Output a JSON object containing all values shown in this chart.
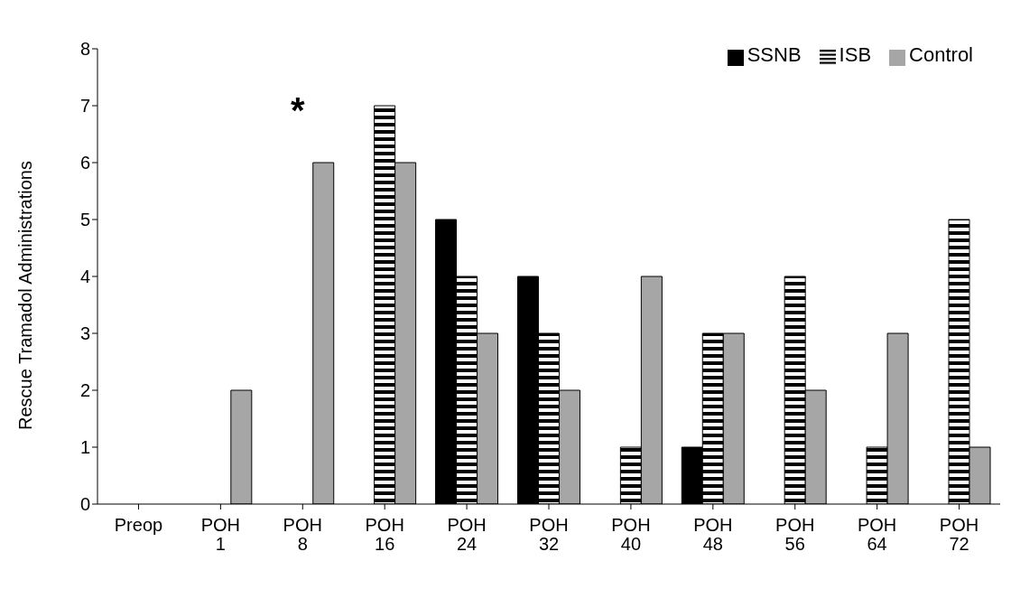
{
  "chart_data": {
    "type": "bar",
    "ylabel": "Rescue Tramadol Administrations",
    "categories": [
      "Preop",
      "POH 1",
      "POH 8",
      "POH 16",
      "POH 24",
      "POH 32",
      "POH 40",
      "POH 48",
      "POH 56",
      "POH 64",
      "POH 72"
    ],
    "series": [
      {
        "name": "SSNB",
        "color": "#000000",
        "values": [
          0,
          0,
          0,
          0,
          5,
          4,
          0,
          1,
          0,
          0,
          0
        ]
      },
      {
        "name": "ISB",
        "color": "#000000",
        "values": [
          0,
          0,
          0,
          7,
          4,
          3,
          1,
          3,
          4,
          1,
          5
        ]
      },
      {
        "name": "Control",
        "color": "#a6a6a6",
        "values": [
          0,
          2,
          6,
          6,
          3,
          2,
          4,
          3,
          2,
          3,
          1
        ]
      }
    ],
    "ylim": [
      0,
      8
    ],
    "yticks": [
      0,
      1,
      2,
      3,
      4,
      5,
      6,
      7,
      8
    ],
    "legend": "top right",
    "annotations": [
      "*"
    ]
  }
}
